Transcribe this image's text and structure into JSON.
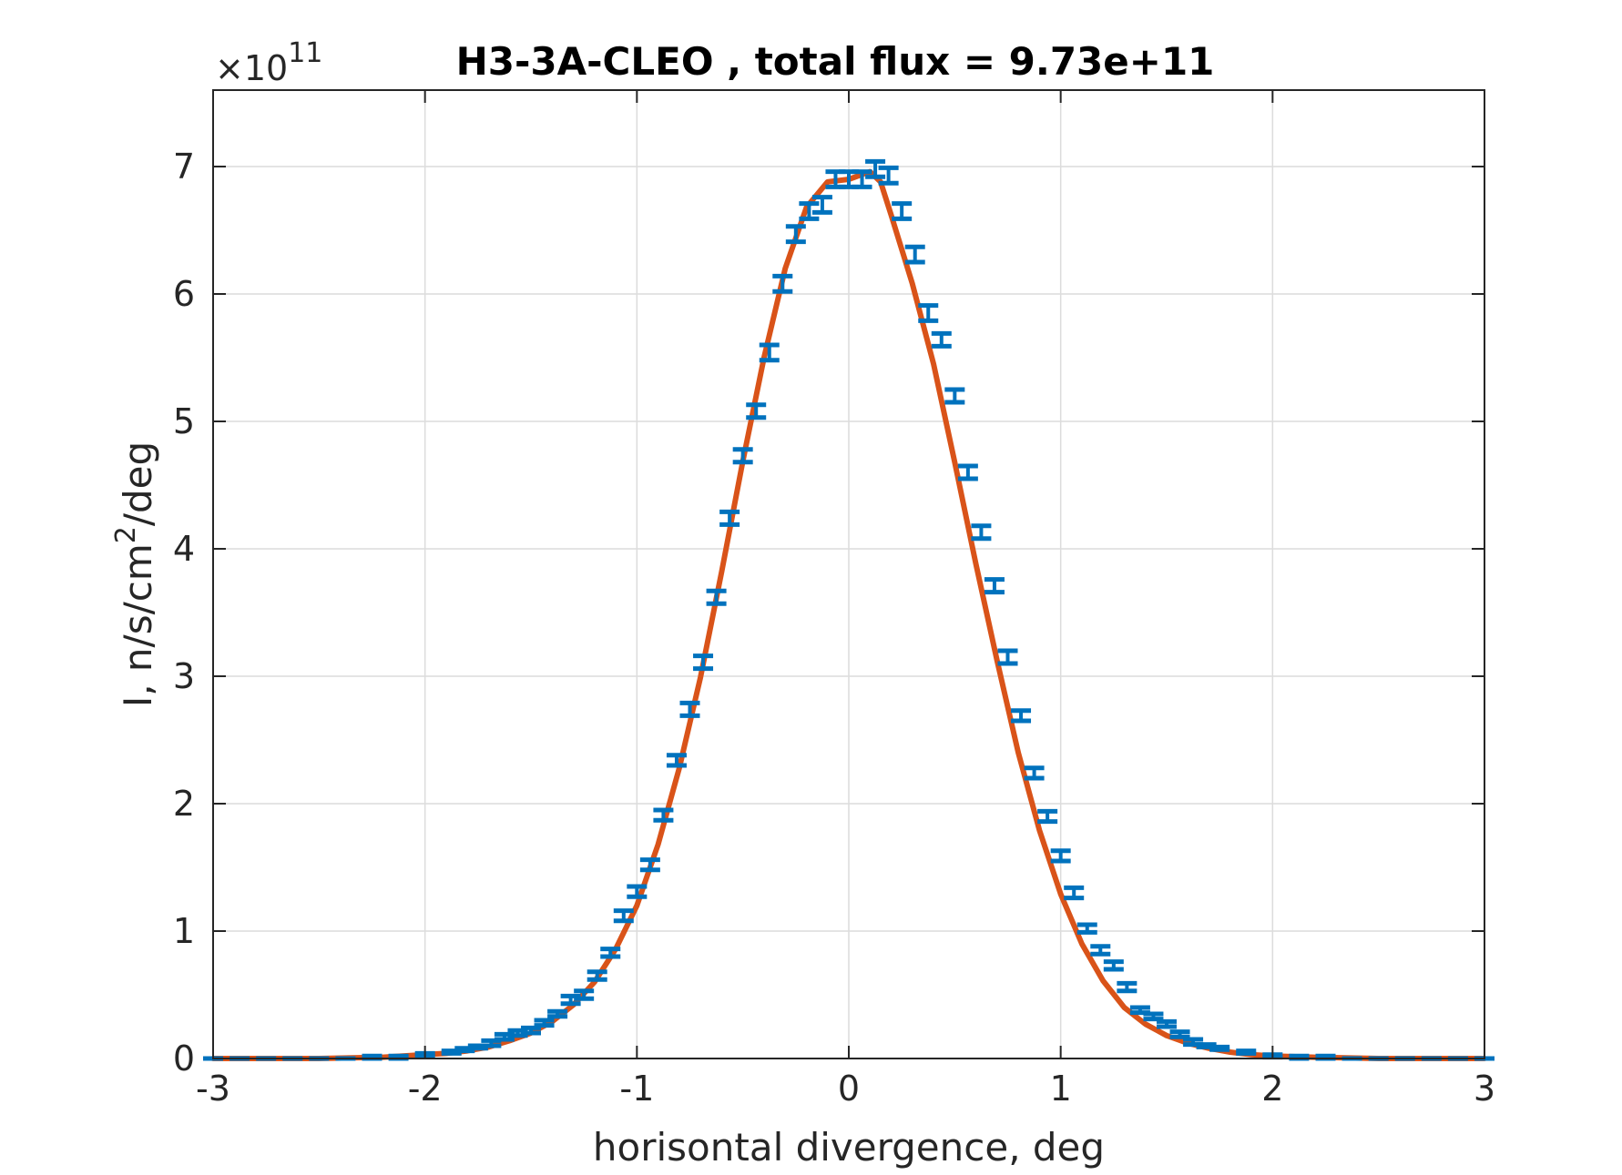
{
  "chart_data": {
    "type": "line",
    "title": "H3-3A-CLEO , total flux =  9.73e+11",
    "xlabel": "horisontal divergence, deg",
    "ylabel_main": "I, n/s/cm",
    "ylabel_sup": "2",
    "ylabel_tail": "/deg",
    "exponent_prefix": "×10",
    "exponent_power": "11",
    "xlim": [
      -3,
      3
    ],
    "ylim": [
      0,
      7.6
    ],
    "y_scale_factor": 100000000000.0,
    "grid": true,
    "xticks": [
      -3,
      -2,
      -1,
      0,
      1,
      2,
      3
    ],
    "xtick_labels": [
      "-3",
      "-2",
      "-1",
      "0",
      "1",
      "2",
      "3"
    ],
    "yticks": [
      0,
      1,
      2,
      3,
      4,
      5,
      6,
      7
    ],
    "ytick_labels": [
      "0",
      "1",
      "2",
      "3",
      "4",
      "5",
      "6",
      "7"
    ],
    "colors": {
      "fit": "#D95319",
      "data": "#0072BD",
      "grid": "#dcdcdc",
      "axis": "#262626"
    },
    "series": [
      {
        "kind": "errorbar",
        "x": [
          -3.0,
          -2.875,
          -2.75,
          -2.625,
          -2.5,
          -2.375,
          -2.25,
          -2.125,
          -2.0,
          -1.875,
          -1.8125,
          -1.75,
          -1.6875,
          -1.625,
          -1.5625,
          -1.5,
          -1.4375,
          -1.375,
          -1.3125,
          -1.25,
          -1.1875,
          -1.125,
          -1.0625,
          -1.0,
          -0.9375,
          -0.875,
          -0.8125,
          -0.75,
          -0.6875,
          -0.625,
          -0.5625,
          -0.5,
          -0.4375,
          -0.375,
          -0.3125,
          -0.25,
          -0.1875,
          -0.125,
          -0.0625,
          0.0,
          0.0625,
          0.125,
          0.1875,
          0.25,
          0.3125,
          0.375,
          0.4375,
          0.5,
          0.5625,
          0.625,
          0.6875,
          0.75,
          0.8125,
          0.875,
          0.9375,
          1.0,
          1.0625,
          1.125,
          1.1875,
          1.25,
          1.3125,
          1.375,
          1.4375,
          1.5,
          1.5625,
          1.625,
          1.6875,
          1.75,
          1.875,
          2.0,
          2.125,
          2.25,
          2.375,
          2.5,
          2.625,
          2.75,
          2.875,
          3.0
        ],
        "y": [
          0.0,
          0.0,
          0.0,
          0.0,
          0.0,
          0.0,
          0.01,
          0.01,
          0.03,
          0.05,
          0.07,
          0.09,
          0.12,
          0.17,
          0.2,
          0.22,
          0.28,
          0.35,
          0.46,
          0.5,
          0.65,
          0.83,
          1.12,
          1.31,
          1.52,
          1.91,
          2.34,
          2.74,
          3.11,
          3.62,
          4.24,
          4.73,
          5.08,
          5.54,
          6.08,
          6.47,
          6.65,
          6.7,
          6.9,
          6.9,
          6.9,
          6.98,
          6.93,
          6.65,
          6.31,
          5.85,
          5.64,
          5.2,
          4.6,
          4.13,
          3.71,
          3.15,
          2.69,
          2.24,
          1.9,
          1.59,
          1.3,
          1.02,
          0.85,
          0.73,
          0.56,
          0.38,
          0.33,
          0.27,
          0.19,
          0.13,
          0.1,
          0.08,
          0.05,
          0.02,
          0.01,
          0.01,
          0.0,
          0.0,
          0.0,
          0.0,
          0.0,
          0.0
        ],
        "err": [
          0.0,
          0.0,
          0.0,
          0.0,
          0.0,
          0.0,
          0.01,
          0.01,
          0.01,
          0.01,
          0.01,
          0.01,
          0.02,
          0.02,
          0.02,
          0.02,
          0.02,
          0.02,
          0.03,
          0.03,
          0.03,
          0.03,
          0.04,
          0.04,
          0.04,
          0.04,
          0.04,
          0.05,
          0.05,
          0.05,
          0.05,
          0.05,
          0.05,
          0.06,
          0.06,
          0.06,
          0.06,
          0.06,
          0.06,
          0.06,
          0.06,
          0.06,
          0.06,
          0.06,
          0.06,
          0.06,
          0.05,
          0.05,
          0.05,
          0.05,
          0.05,
          0.05,
          0.04,
          0.04,
          0.04,
          0.04,
          0.04,
          0.03,
          0.03,
          0.03,
          0.03,
          0.02,
          0.02,
          0.02,
          0.02,
          0.02,
          0.01,
          0.01,
          0.01,
          0.01,
          0.01,
          0.01,
          0.0,
          0.0,
          0.0,
          0.0,
          0.0,
          0.0
        ]
      },
      {
        "kind": "line",
        "x": [
          -3.0,
          -2.5,
          -2.2,
          -2.0,
          -1.9,
          -1.8,
          -1.7,
          -1.6,
          -1.5,
          -1.4,
          -1.3,
          -1.2,
          -1.1,
          -1.0,
          -0.9,
          -0.8,
          -0.7,
          -0.6,
          -0.5,
          -0.4,
          -0.3,
          -0.2,
          -0.1,
          0.0,
          0.05,
          0.1,
          0.15,
          0.2,
          0.3,
          0.4,
          0.5,
          0.6,
          0.7,
          0.8,
          0.9,
          1.0,
          1.1,
          1.2,
          1.3,
          1.4,
          1.5,
          1.6,
          1.7,
          1.8,
          1.9,
          2.0,
          2.2,
          2.5,
          3.0
        ],
        "y": [
          0.0,
          0.0,
          0.01,
          0.03,
          0.04,
          0.06,
          0.09,
          0.14,
          0.2,
          0.29,
          0.42,
          0.6,
          0.86,
          1.2,
          1.68,
          2.28,
          2.99,
          3.82,
          4.69,
          5.5,
          6.2,
          6.68,
          6.88,
          6.9,
          6.93,
          6.96,
          6.88,
          6.62,
          6.08,
          5.45,
          4.68,
          3.88,
          3.12,
          2.4,
          1.79,
          1.29,
          0.9,
          0.61,
          0.4,
          0.27,
          0.18,
          0.12,
          0.08,
          0.05,
          0.03,
          0.02,
          0.01,
          0.0,
          0.0
        ]
      }
    ]
  }
}
